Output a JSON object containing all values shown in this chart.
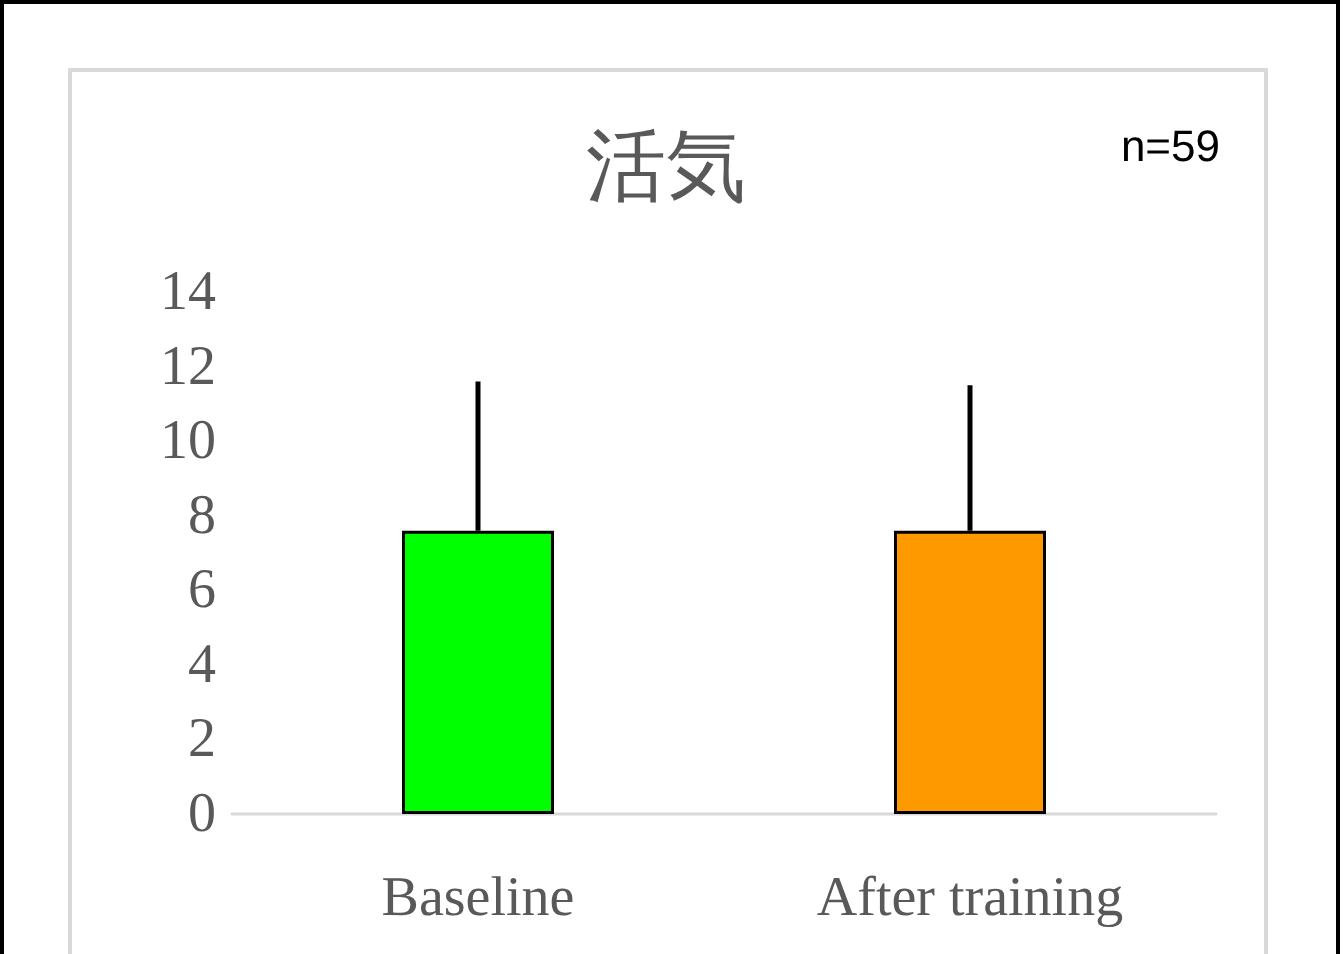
{
  "chart_data": {
    "type": "bar",
    "title": "活気",
    "annotations": [
      "n=59"
    ],
    "categories": [
      "Baseline",
      "After training"
    ],
    "values": [
      7.6,
      7.6
    ],
    "colors": [
      "#00ff00",
      "#ff9900"
    ],
    "errors": [
      [
        7.6,
        11.6
      ],
      [
        7.6,
        11.5
      ]
    ],
    "ylim": [
      0,
      14
    ],
    "yticks": [
      0,
      2,
      4,
      6,
      8,
      10,
      12,
      14
    ],
    "grid": false
  }
}
